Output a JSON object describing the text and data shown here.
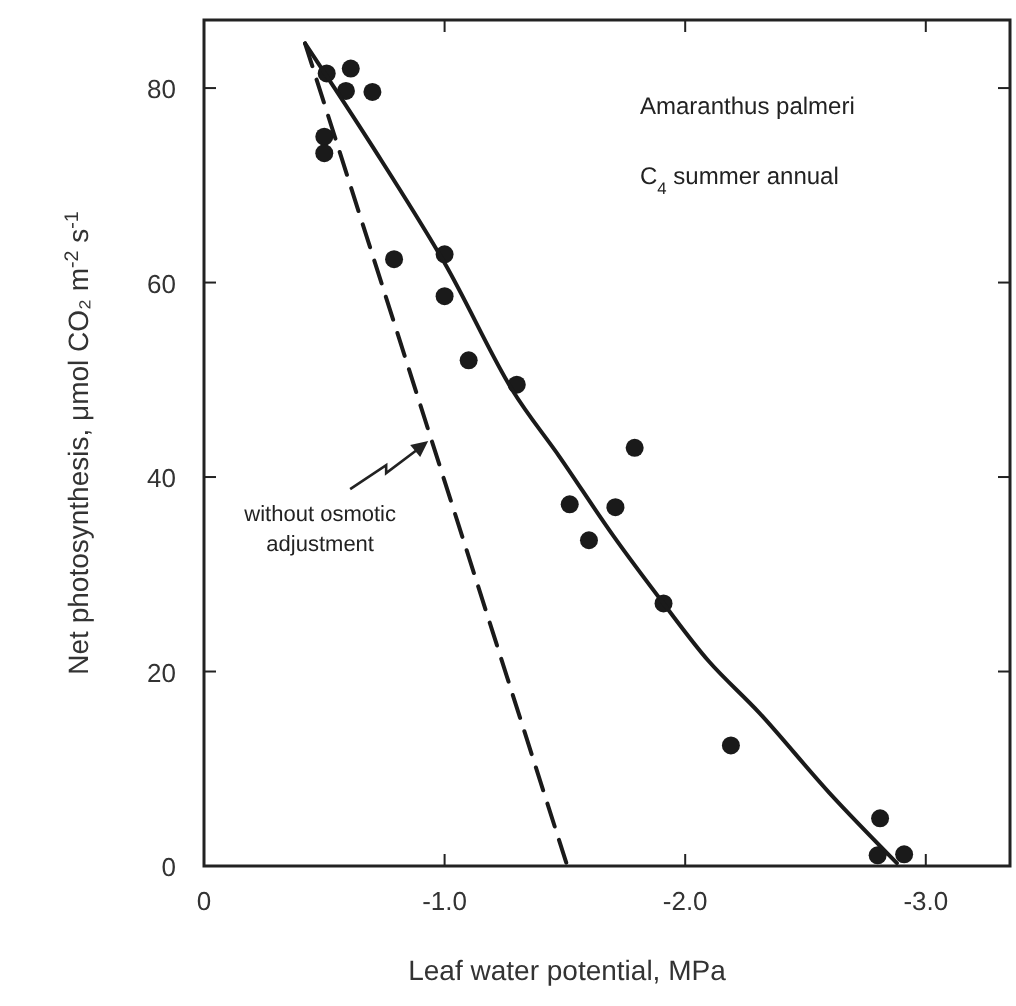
{
  "chart_data": {
    "type": "scatter",
    "xlabel": "Leaf water potential, MPa",
    "ylabel": "Net photosynthesis, μmol CO₂ m$^{-2}$ s$^{-1}$",
    "xlim": [
      0,
      -3.35
    ],
    "ylim": [
      0,
      87
    ],
    "xticks": [
      0,
      {
        "value": -1,
        "label": "-1.0"
      },
      {
        "value": -2,
        "label": "-2.0"
      },
      {
        "value": -3,
        "label": "-3.0"
      }
    ],
    "yticks": [
      0,
      20,
      40,
      60,
      80
    ],
    "grid": false,
    "series": [
      {
        "color": "#1a1a1a",
        "marker": "circle",
        "x": [
          -0.51,
          -0.61,
          -0.59,
          -0.7,
          -0.5,
          -0.5,
          -0.79,
          -1.0,
          -1.0,
          -1.1,
          -1.3,
          -1.79,
          -1.52,
          -1.6,
          -1.71,
          -1.91,
          -2.19,
          -2.81,
          -2.8,
          -2.91
        ],
        "values": [
          81.5,
          82,
          79.7,
          79.6,
          75,
          73.3,
          62.4,
          62.9,
          58.6,
          52,
          49.5,
          43,
          37.2,
          33.5,
          36.9,
          27,
          12.4,
          4.9,
          1.1,
          1.2
        ]
      },
      {
        "type": "line",
        "color": "#1a1a1a",
        "marker": "none",
        "line_style": "solid",
        "x": [
          -0.42,
          -0.7,
          -1.0,
          -1.28,
          -1.48,
          -1.7,
          -1.91,
          -2.1,
          -2.31,
          -2.6,
          -2.88
        ],
        "values": [
          84.6,
          74,
          62,
          49,
          42,
          34,
          27,
          21,
          15.7,
          7.5,
          0.3
        ]
      },
      {
        "type": "line",
        "color": "#1a1a1a",
        "marker": "none",
        "line_style": "dashed",
        "x": [
          -0.42,
          -1.51
        ],
        "values": [
          84.6,
          0
        ]
      }
    ],
    "annotations": [
      "Amaranthus palmeri",
      "C$_{4}$ summer annual",
      {
        "text": "without osmotic adjustment",
        "x": -0.94,
        "y": 43.7
      }
    ]
  }
}
